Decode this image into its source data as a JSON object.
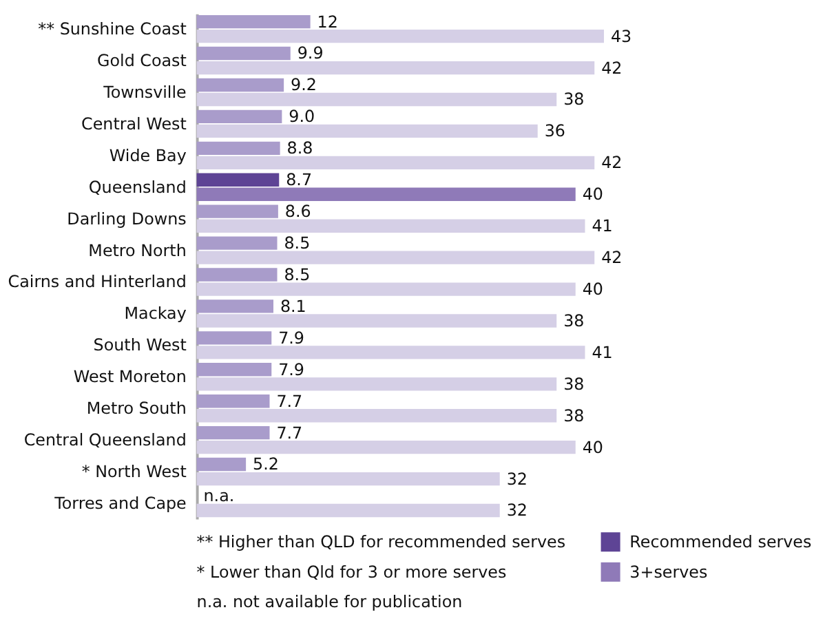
{
  "chart_data": {
    "type": "bar",
    "orientation": "horizontal",
    "legend": "bottom right",
    "categories": [
      "** Sunshine Coast",
      "Gold Coast",
      "Townsville",
      "Central West",
      "Wide Bay",
      "Queensland",
      "Darling Downs",
      "Metro North",
      "Cairns and Hinterland",
      "Mackay",
      "South West",
      "West Moreton",
      "Metro South",
      "Central Queensland",
      "* North West",
      "Torres and Cape"
    ],
    "series": [
      {
        "name": "Recommended serves",
        "color": "#5e4495",
        "colors": [
          "#a99ccb",
          "#a99ccb",
          "#a99ccb",
          "#a99ccb",
          "#a99ccb",
          "#5e4495",
          "#a99ccb",
          "#a99ccb",
          "#a99ccb",
          "#a99ccb",
          "#a99ccb",
          "#a99ccb",
          "#a99ccb",
          "#a99ccb",
          "#a99ccb",
          "#a99ccb"
        ],
        "values": [
          12,
          9.9,
          9.2,
          9.0,
          8.8,
          8.7,
          8.6,
          8.5,
          8.5,
          8.1,
          7.9,
          7.9,
          7.7,
          7.7,
          5.2,
          null
        ],
        "value_labels": [
          "12",
          "9.9",
          "9.2",
          "9.0",
          "8.8",
          "8.7",
          "8.6",
          "8.5",
          "8.5",
          "8.1",
          "7.9",
          "7.9",
          "7.7",
          "7.7",
          "5.2",
          "n.a."
        ]
      },
      {
        "name": "3+serves",
        "color": "#8f7ab8",
        "colors": [
          "#d5cfe6",
          "#d5cfe6",
          "#d5cfe6",
          "#d5cfe6",
          "#d5cfe6",
          "#8f7ab8",
          "#d5cfe6",
          "#d5cfe6",
          "#d5cfe6",
          "#d5cfe6",
          "#d5cfe6",
          "#d5cfe6",
          "#d5cfe6",
          "#d5cfe6",
          "#d5cfe6",
          "#d5cfe6"
        ],
        "values": [
          43,
          42,
          38,
          36,
          42,
          40,
          41,
          42,
          40,
          38,
          41,
          38,
          38,
          40,
          32,
          32
        ],
        "value_labels": [
          "43",
          "42",
          "38",
          "36",
          "42",
          "40",
          "41",
          "42",
          "40",
          "38",
          "41",
          "38",
          "38",
          "40",
          "32",
          "32"
        ]
      }
    ],
    "annotations": [
      "** Higher than QLD for recommended serves",
      "* Lower than Qld for 3 or more serves",
      "n.a. not available for publication"
    ]
  }
}
